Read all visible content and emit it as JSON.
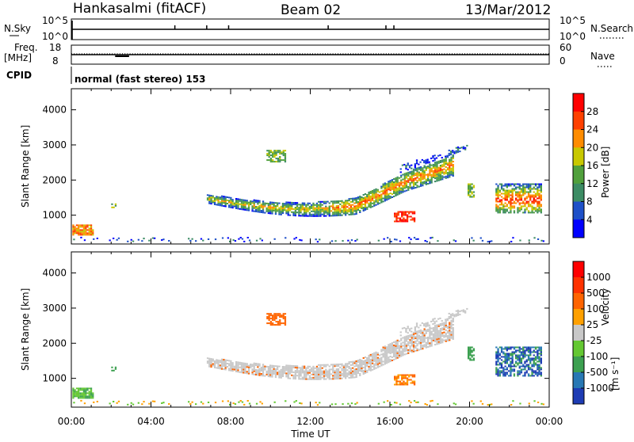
{
  "header": {
    "station": "Hankasalmi (fitACF)",
    "beam": "Beam 02",
    "date": "13/Mar/2012"
  },
  "strips": {
    "nsky_label": "N.Sky",
    "nsearch_label": "N.Search",
    "nsky_ticks": [
      "10^5",
      "10^0"
    ],
    "nsearch_ticks": [
      "10^5",
      "10^0"
    ],
    "freq_label_line1": "Freq.",
    "freq_label_line2": "[MHz]",
    "freq_ticks": [
      "18",
      "8"
    ],
    "nave_label": "Nave",
    "nave_ticks": [
      "60",
      "0"
    ],
    "cpid_label": "CPID",
    "cpid_text": "normal (fast stereo) 153"
  },
  "chart_data": [
    {
      "type": "heatmap",
      "panel": "power",
      "ylabel": "Slant Range [km]",
      "yticks": [
        1000,
        2000,
        3000,
        4000
      ],
      "ylim": [
        180,
        4600
      ],
      "xlim": [
        0,
        24
      ],
      "colorbar": {
        "label": "Power [dB]",
        "ticks": [
          "28",
          "24",
          "20",
          "16",
          "12",
          "8",
          "4"
        ],
        "colors": [
          "#0000ff",
          "#1e50c8",
          "#3c8c64",
          "#50a03c",
          "#c8c800",
          "#ff8c00",
          "#ff4000",
          "#ff0000"
        ]
      }
    },
    {
      "type": "heatmap",
      "panel": "velocity",
      "ylabel": "Slant Range [km]",
      "yticks": [
        1000,
        2000,
        3000,
        4000
      ],
      "ylim": [
        180,
        4600
      ],
      "xlim": [
        0,
        24
      ],
      "colorbar": {
        "label": "Velocity",
        "label_unit": "[m s⁻¹]",
        "ticks": [
          "1000",
          "500",
          "100",
          "25",
          "-25",
          "-100",
          "-500",
          "-1000"
        ],
        "colors": [
          "#1e3cb4",
          "#2878b4",
          "#3ca050",
          "#64c832",
          "#c8c8c8",
          "#ffa000",
          "#ff6400",
          "#ff3200",
          "#ff0000"
        ]
      }
    }
  ],
  "xaxis": {
    "ticks": [
      "00:00",
      "04:00",
      "08:00",
      "12:00",
      "16:00",
      "20:00",
      "00:00"
    ],
    "label": "Time UT"
  }
}
